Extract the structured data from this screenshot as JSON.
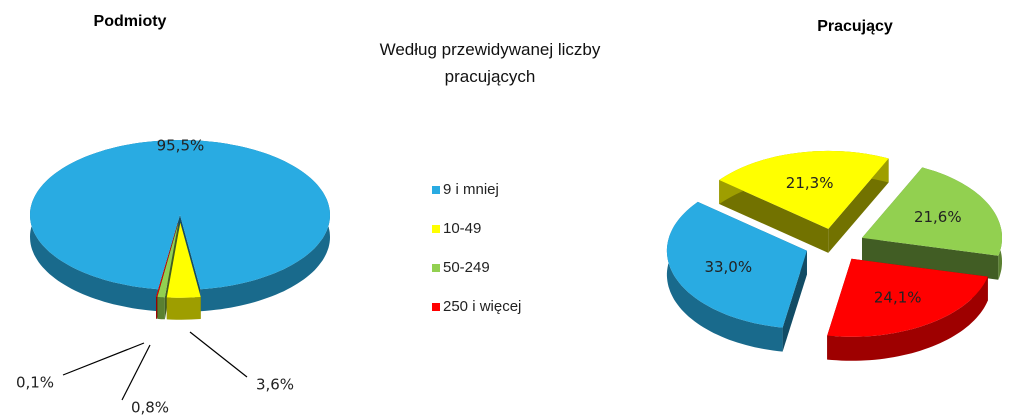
{
  "chart_data": [
    {
      "type": "pie",
      "title": "Podmioty",
      "legend_title": "Według przewidywanej liczby pracujących",
      "categories": [
        "9 i mniej",
        "10-49",
        "50-249",
        "250 i więcej"
      ],
      "values": [
        95.5,
        3.6,
        0.8,
        0.1
      ],
      "value_labels": [
        "95,5%",
        "3,6%",
        "0,8%",
        "0,1%"
      ],
      "colors": [
        "#29abe2",
        "#ffff00",
        "#92d050",
        "#ff0000"
      ]
    },
    {
      "type": "pie",
      "title": "Pracujący",
      "categories": [
        "9 i mniej",
        "10-49",
        "50-249",
        "250 i więcej"
      ],
      "values": [
        33.0,
        21.3,
        21.6,
        24.1
      ],
      "value_labels": [
        "33,0%",
        "21,3%",
        "21,6%",
        "24,1%"
      ],
      "colors": [
        "#29abe2",
        "#ffff00",
        "#92d050",
        "#ff0000"
      ]
    }
  ]
}
